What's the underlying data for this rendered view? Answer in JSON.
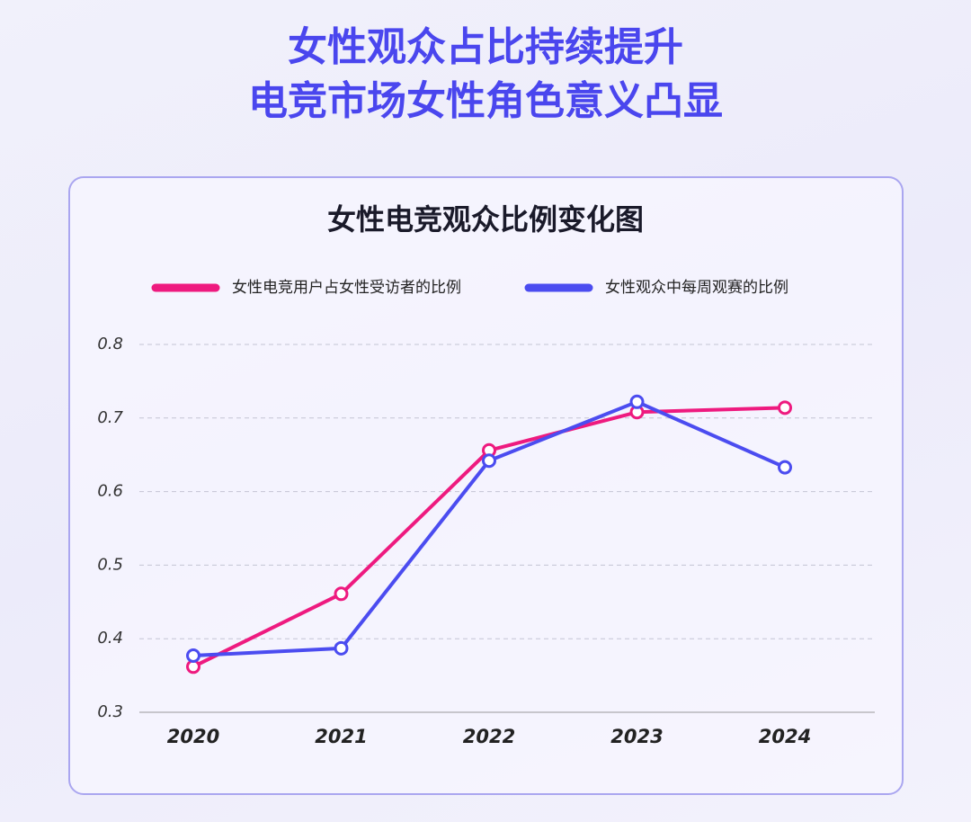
{
  "headline": [
    "女性观众占比持续提升",
    "电竞市场女性角色意义凸显"
  ],
  "chart_data": {
    "type": "line",
    "title": "女性电竞观众比例变化图",
    "categories": [
      "2020",
      "2021",
      "2022",
      "2023",
      "2024"
    ],
    "series": [
      {
        "name": "女性电竞用户占女性受访者的比例",
        "color": "#ee1a7f",
        "values": [
          0.362,
          0.461,
          0.656,
          0.708,
          0.714
        ]
      },
      {
        "name": "女性观众中每周观赛的比例",
        "color": "#4b4cf0",
        "values": [
          0.377,
          0.387,
          0.642,
          0.722,
          0.633
        ]
      }
    ],
    "ylim": [
      0.3,
      0.8
    ],
    "yticks": [
      0.3,
      0.4,
      0.5,
      0.6,
      0.7,
      0.8
    ],
    "grid": true
  }
}
